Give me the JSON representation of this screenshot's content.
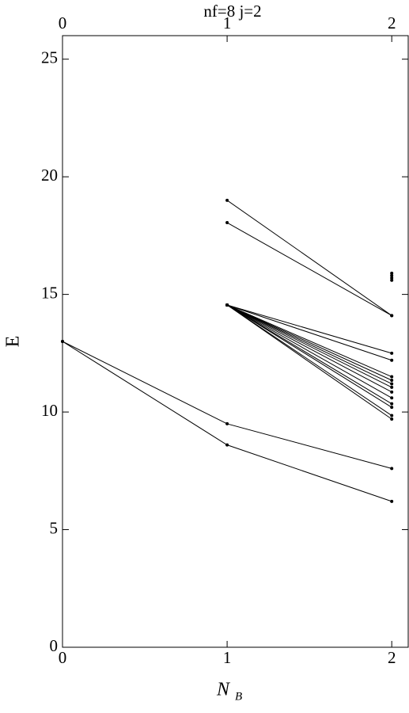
{
  "chart_data": {
    "type": "line",
    "title": "nf=8   j=2",
    "xlabel": "N",
    "xlabel_sub": "B",
    "ylabel": "E",
    "xlim": [
      0,
      2.1
    ],
    "xticks": [
      0,
      1,
      2
    ],
    "ylim": [
      0,
      26
    ],
    "yticks": [
      0,
      5,
      10,
      15,
      20,
      25
    ],
    "color": "#000000",
    "series": [
      {
        "x": [
          0,
          1,
          2
        ],
        "values": [
          13,
          9.5,
          7.6
        ]
      },
      {
        "x": [
          0,
          1,
          2
        ],
        "values": [
          13,
          8.6,
          6.2
        ]
      },
      {
        "x": [
          1,
          2
        ],
        "values": [
          19,
          14.1
        ]
      },
      {
        "x": [
          1,
          2
        ],
        "values": [
          18.05,
          14.1
        ]
      },
      {
        "x": [
          1,
          2
        ],
        "values": [
          14.55,
          12.5
        ]
      },
      {
        "x": [
          1,
          2
        ],
        "values": [
          14.55,
          12.2
        ]
      },
      {
        "x": [
          1,
          2
        ],
        "values": [
          14.55,
          11.5
        ]
      },
      {
        "x": [
          1,
          2
        ],
        "values": [
          14.55,
          11.35
        ]
      },
      {
        "x": [
          1,
          2
        ],
        "values": [
          14.55,
          11.2
        ]
      },
      {
        "x": [
          1,
          2
        ],
        "values": [
          14.55,
          11.05
        ]
      },
      {
        "x": [
          1,
          2
        ],
        "values": [
          14.55,
          10.85
        ]
      },
      {
        "x": [
          1,
          2
        ],
        "values": [
          14.55,
          10.6
        ]
      },
      {
        "x": [
          1,
          2
        ],
        "values": [
          14.55,
          10.35
        ]
      },
      {
        "x": [
          1,
          2
        ],
        "values": [
          14.55,
          10.2
        ]
      },
      {
        "x": [
          1,
          2
        ],
        "values": [
          14.55,
          9.85
        ]
      },
      {
        "x": [
          1,
          2
        ],
        "values": [
          14.55,
          9.7
        ]
      },
      {
        "x": [
          2
        ],
        "values": [
          15.9
        ]
      },
      {
        "x": [
          2
        ],
        "values": [
          15.8
        ]
      },
      {
        "x": [
          2
        ],
        "values": [
          15.7
        ]
      },
      {
        "x": [
          2
        ],
        "values": [
          15.6
        ]
      }
    ]
  }
}
